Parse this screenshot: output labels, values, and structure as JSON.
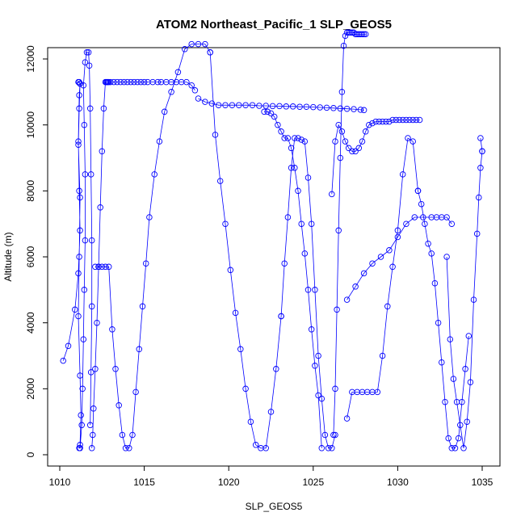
{
  "chart_data": {
    "type": "line",
    "title": "ATOM2 Northeast_Pacific_1 SLP_GEOS5",
    "xlabel": "SLP_GEOS5",
    "ylabel": "Altitude (m)",
    "xlim": [
      1010,
      1035
    ],
    "ylim": [
      0,
      12000
    ],
    "x_ticks": [
      1010,
      1015,
      1020,
      1025,
      1030,
      1035
    ],
    "y_ticks": [
      0,
      2000,
      4000,
      6000,
      8000,
      10000,
      12000
    ],
    "grid": false,
    "marker": "open-circle",
    "color": "#0000ff",
    "series": [
      {
        "x": [
          1010.2,
          1010.5,
          1010.9,
          1011.1,
          1011.2,
          1011.15,
          1011.1,
          1011.15,
          1011.2,
          1011.15,
          1011.1,
          1011.2,
          1011.15,
          1011.1,
          1011.2,
          1011.15,
          1011.1,
          1011.2,
          1011.25,
          1011.2,
          1011.15,
          1011.2,
          1011.3,
          1011.35,
          1011.4,
          1011.45,
          1011.5,
          1011.5,
          1011.45,
          1011.4,
          1011.5,
          1011.6,
          1011.7,
          1011.75,
          1011.8,
          1011.85,
          1011.9,
          1011.9,
          1011.85,
          1011.8
        ],
        "y": [
          2850,
          3300,
          4400,
          5500,
          6800,
          8000,
          9500,
          10900,
          11250,
          11300,
          11300,
          11250,
          10500,
          9400,
          7800,
          6000,
          4200,
          2400,
          1200,
          300,
          200,
          200,
          900,
          2000,
          3500,
          5000,
          6500,
          8500,
          10000,
          11200,
          11900,
          12200,
          12200,
          11800,
          10500,
          8500,
          6500,
          4500,
          2500,
          900
        ]
      },
      {
        "x": [
          1011.9,
          1011.95,
          1012.0,
          1012.1,
          1012.2,
          1012.3,
          1012.4,
          1012.5,
          1012.6,
          1012.7,
          1012.75,
          1012.8,
          1012.85,
          1012.9,
          1013.0,
          1013.2,
          1013.4,
          1013.6,
          1013.8,
          1014.0,
          1014.2,
          1014.4,
          1014.6,
          1014.8,
          1015.0,
          1015.2,
          1015.5,
          1015.8,
          1016.0,
          1016.3,
          1016.6,
          1016.9,
          1017.2,
          1017.5,
          1017.8,
          1018.0
        ],
        "y": [
          200,
          600,
          1400,
          2600,
          4000,
          5700,
          7500,
          9200,
          10500,
          11300,
          11300,
          11300,
          11300,
          11300,
          11300,
          11300,
          11300,
          11300,
          11300,
          11300,
          11300,
          11300,
          11300,
          11300,
          11300,
          11300,
          11300,
          11300,
          11300,
          11300,
          11300,
          11300,
          11300,
          11300,
          11200,
          11050
        ]
      },
      {
        "x": [
          1012.1,
          1012.3,
          1012.5,
          1012.7,
          1012.9,
          1013.1,
          1013.3,
          1013.5,
          1013.7,
          1013.9,
          1014.1,
          1014.3,
          1014.5,
          1014.7,
          1014.9,
          1015.1,
          1015.3,
          1015.6,
          1015.9,
          1016.2,
          1016.6,
          1017.0,
          1017.4,
          1017.8,
          1018.2,
          1018.6,
          1018.9
        ],
        "y": [
          5700,
          5700,
          5700,
          5700,
          5700,
          3800,
          2600,
          1500,
          600,
          200,
          200,
          600,
          1900,
          3200,
          4500,
          5800,
          7200,
          8500,
          9500,
          10400,
          11000,
          11600,
          12300,
          12450,
          12450,
          12450,
          12200
        ]
      },
      {
        "x": [
          1018.2,
          1018.6,
          1019.0,
          1019.4,
          1019.8,
          1020.2,
          1020.6,
          1021.0,
          1021.4,
          1021.8,
          1022.2,
          1022.6,
          1023.0,
          1023.4,
          1023.8,
          1024.2,
          1024.6,
          1025.0,
          1025.4,
          1025.8,
          1026.2,
          1026.6,
          1027.0,
          1027.4,
          1027.8,
          1028.0
        ],
        "y": [
          10800,
          10700,
          10650,
          10600,
          10600,
          10600,
          10600,
          10600,
          10600,
          10580,
          10580,
          10570,
          10570,
          10560,
          10560,
          10550,
          10550,
          10540,
          10530,
          10520,
          10510,
          10500,
          10490,
          10480,
          10460,
          10450
        ]
      },
      {
        "x": [
          1018.9,
          1019.2,
          1019.5,
          1019.8,
          1020.1,
          1020.4,
          1020.7,
          1021.0,
          1021.3,
          1021.6,
          1021.9,
          1022.2,
          1022.5,
          1022.8,
          1023.1
        ],
        "y": [
          12200,
          9700,
          8300,
          7000,
          5600,
          4300,
          3200,
          2000,
          1000,
          300,
          200,
          200,
          1300,
          2600,
          4200
        ]
      },
      {
        "x": [
          1023.1,
          1023.3,
          1023.5,
          1023.7,
          1023.9,
          1024.1,
          1024.3,
          1024.5,
          1024.7,
          1024.9,
          1025.1,
          1025.3,
          1025.5,
          1025.7,
          1025.9,
          1026.1,
          1026.3
        ],
        "y": [
          4200,
          5800,
          7200,
          8700,
          9600,
          9600,
          9550,
          9500,
          8400,
          7000,
          5000,
          3000,
          1700,
          600,
          200,
          200,
          600
        ]
      },
      {
        "x": [
          1022.1,
          1022.3,
          1022.5,
          1022.7,
          1022.9,
          1023.1,
          1023.3,
          1023.5,
          1023.7,
          1023.9,
          1024.1,
          1024.3,
          1024.5,
          1024.7,
          1024.9,
          1025.1,
          1025.3,
          1025.5
        ],
        "y": [
          10400,
          10400,
          10350,
          10250,
          10000,
          9800,
          9600,
          9600,
          9300,
          8700,
          8000,
          7000,
          6100,
          5000,
          3800,
          2700,
          1800,
          200
        ]
      },
      {
        "x": [
          1026.2,
          1026.3,
          1026.4,
          1026.5,
          1026.6,
          1026.7,
          1026.8,
          1026.9,
          1027.0,
          1027.1,
          1027.2,
          1027.3,
          1027.4,
          1027.5,
          1027.6,
          1027.7,
          1027.8,
          1027.9,
          1028.0,
          1028.1
        ],
        "y": [
          600,
          2000,
          4400,
          6800,
          9000,
          11000,
          12400,
          12700,
          12800,
          12800,
          12800,
          12800,
          12800,
          12750,
          12750,
          12750,
          12750,
          12750,
          12750,
          12750
        ]
      },
      {
        "x": [
          1026.1,
          1026.3,
          1026.5,
          1026.7,
          1026.9,
          1027.1,
          1027.3,
          1027.5,
          1027.7,
          1027.9,
          1028.1,
          1028.3,
          1028.5,
          1028.7,
          1028.9,
          1029.1,
          1029.3,
          1029.5,
          1029.7,
          1029.9,
          1030.1,
          1030.3,
          1030.5,
          1030.7,
          1030.9,
          1031.1,
          1031.3
        ],
        "y": [
          7900,
          9500,
          10000,
          9800,
          9500,
          9300,
          9200,
          9200,
          9300,
          9500,
          9800,
          10000,
          10050,
          10100,
          10100,
          10100,
          10100,
          10100,
          10150,
          10150,
          10150,
          10150,
          10150,
          10150,
          10150,
          10150,
          10150
        ]
      },
      {
        "x": [
          1027.0,
          1027.3,
          1027.6,
          1027.9,
          1028.2,
          1028.5,
          1028.8,
          1029.1,
          1029.4,
          1029.7,
          1030.0,
          1030.3,
          1030.6,
          1030.9,
          1031.2
        ],
        "y": [
          1100,
          1900,
          1900,
          1900,
          1900,
          1900,
          1900,
          3000,
          4500,
          5700,
          6800,
          8500,
          9600,
          9500,
          8000
        ]
      },
      {
        "x": [
          1027.0,
          1027.5,
          1028.0,
          1028.5,
          1029.0,
          1029.5,
          1030.0,
          1030.5,
          1031.0,
          1031.5,
          1032.0,
          1032.3,
          1032.6,
          1032.9,
          1033.2
        ],
        "y": [
          4700,
          5100,
          5500,
          5800,
          6000,
          6200,
          6600,
          7000,
          7200,
          7200,
          7200,
          7200,
          7200,
          7200,
          7000
        ]
      },
      {
        "x": [
          1031.2,
          1031.4,
          1031.6,
          1031.8,
          1032.0,
          1032.2,
          1032.4,
          1032.6,
          1032.8,
          1033.0,
          1033.2,
          1033.4,
          1033.6,
          1033.8,
          1034.0,
          1034.2
        ],
        "y": [
          8000,
          7600,
          7000,
          6400,
          6100,
          5200,
          4000,
          2800,
          1600,
          500,
          200,
          200,
          500,
          1600,
          2600,
          3600
        ]
      },
      {
        "x": [
          1032.9,
          1033.1,
          1033.3,
          1033.5,
          1033.7,
          1033.9,
          1034.1,
          1034.3,
          1034.5,
          1034.7,
          1034.8,
          1034.9,
          1035.0,
          1035.0,
          1034.9
        ],
        "y": [
          6000,
          3500,
          2300,
          1600,
          900,
          200,
          1000,
          2200,
          4700,
          6700,
          7800,
          8700,
          9200,
          9200,
          9600
        ]
      }
    ]
  }
}
